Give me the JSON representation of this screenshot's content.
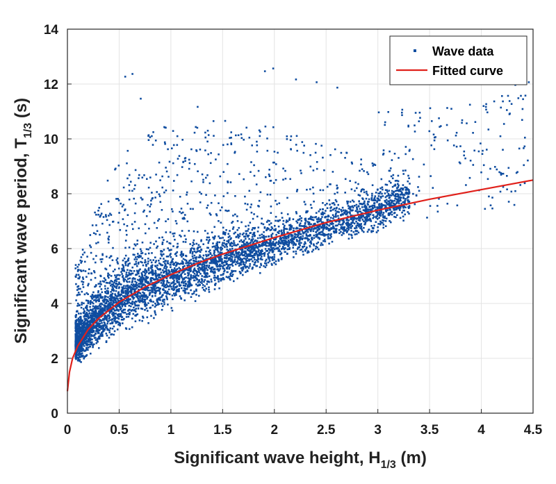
{
  "chart_data": {
    "type": "scatter",
    "title": "",
    "xlabel": {
      "prefix": "Significant wave height, H",
      "subscript": "1/3",
      "suffix": " (m)"
    },
    "ylabel": {
      "prefix": "Significant wave period, T",
      "subscript": "1/3",
      "suffix": " (s)"
    },
    "xlim": [
      0,
      4.5
    ],
    "ylim": [
      0,
      14
    ],
    "xticks": [
      "0",
      "0.5",
      "1",
      "1.5",
      "2",
      "2.5",
      "3",
      "3.5",
      "4",
      "4.5"
    ],
    "yticks": [
      "0",
      "2",
      "4",
      "6",
      "8",
      "10",
      "12",
      "14"
    ],
    "grid": true,
    "legend": {
      "position": "top-right",
      "entries": [
        "Wave data",
        "Fitted curve"
      ]
    },
    "series": [
      {
        "name": "Wave data",
        "kind": "scatter",
        "color": "#0F4DA0",
        "density_profile": [
          {
            "x": 0.1,
            "y_min": 1.8,
            "y_core": 2.7,
            "y_max": 5.5
          },
          {
            "x": 0.25,
            "y_min": 2.2,
            "y_core": 3.5,
            "y_max": 7.5
          },
          {
            "x": 0.5,
            "y_min": 2.8,
            "y_core": 4.3,
            "y_max": 9.5
          },
          {
            "x": 0.75,
            "y_min": 3.2,
            "y_core": 4.8,
            "y_max": 10.5
          },
          {
            "x": 1.0,
            "y_min": 3.7,
            "y_core": 5.1,
            "y_max": 10.5
          },
          {
            "x": 1.5,
            "y_min": 4.5,
            "y_core": 5.7,
            "y_max": 10.8
          },
          {
            "x": 2.0,
            "y_min": 5.3,
            "y_core": 6.3,
            "y_max": 10.5
          },
          {
            "x": 2.5,
            "y_min": 6.0,
            "y_core": 6.9,
            "y_max": 9.8
          },
          {
            "x": 3.0,
            "y_min": 6.6,
            "y_core": 7.5,
            "y_max": 9.2
          },
          {
            "x": 3.3,
            "y_min": 7.1,
            "y_core": 7.9,
            "y_max": 8.8
          }
        ],
        "outliers": [
          {
            "x": 0.55,
            "y": 12.3
          },
          {
            "x": 0.62,
            "y": 12.4
          },
          {
            "x": 0.7,
            "y": 11.5
          },
          {
            "x": 1.25,
            "y": 11.2
          },
          {
            "x": 1.9,
            "y": 12.5
          },
          {
            "x": 1.98,
            "y": 12.6
          },
          {
            "x": 2.2,
            "y": 12.2
          },
          {
            "x": 2.4,
            "y": 12.1
          },
          {
            "x": 2.6,
            "y": 11.9
          },
          {
            "x": 3.0,
            "y": 11.0
          },
          {
            "x": 3.4,
            "y": 10.8
          },
          {
            "x": 3.6,
            "y": 10.5
          },
          {
            "x": 3.85,
            "y": 10.6
          },
          {
            "x": 4.05,
            "y": 11.0
          },
          {
            "x": 4.2,
            "y": 11.4
          },
          {
            "x": 4.32,
            "y": 12.0
          },
          {
            "x": 4.45,
            "y": 12.1
          }
        ]
      },
      {
        "name": "Fitted curve",
        "kind": "line",
        "color": "#E0201A",
        "x": [
          0,
          0.02,
          0.05,
          0.1,
          0.2,
          0.3,
          0.5,
          0.75,
          1.0,
          1.25,
          1.5,
          2.0,
          2.5,
          3.0,
          3.5,
          4.0,
          4.5
        ],
        "y": [
          0.8,
          1.5,
          2.0,
          2.45,
          3.05,
          3.45,
          4.05,
          4.6,
          5.05,
          5.45,
          5.8,
          6.4,
          6.95,
          7.4,
          7.8,
          8.15,
          8.5
        ]
      }
    ]
  }
}
